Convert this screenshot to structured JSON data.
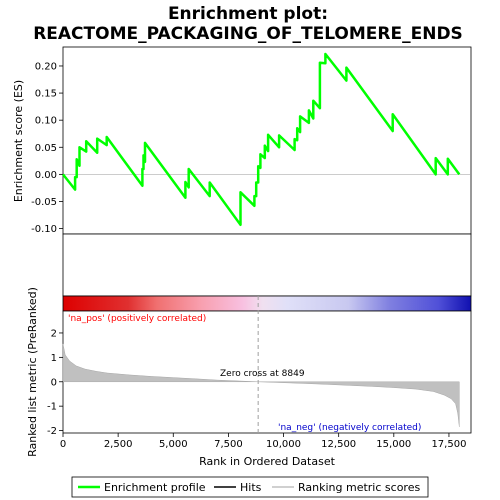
{
  "chart_data": {
    "type": "line",
    "title_line1": "Enrichment plot:",
    "title_line2": "REACTOME_PACKAGING_OF_TELOMERE_ENDS",
    "top_panel": {
      "ylabel": "Enrichment score (ES)",
      "ylim": [
        -0.11,
        0.235
      ],
      "yticks": [
        -0.1,
        -0.05,
        0.0,
        0.05,
        0.1,
        0.15,
        0.2
      ],
      "ytick_labels": [
        "-0.10",
        "-0.05",
        "0.00",
        "0.05",
        "0.10",
        "0.15",
        "0.20"
      ],
      "zero_line": true
    },
    "bottom_panel": {
      "ylabel": "Ranked list metric (PreRanked)",
      "ylim": [
        -2.1,
        2.9
      ],
      "yticks": [
        -2,
        -1,
        0,
        1,
        2
      ],
      "ytick_labels": [
        "-2",
        "-1",
        "0",
        "1",
        "2"
      ],
      "pos_label": "'na_pos' (positively correlated)",
      "neg_label": "'na_neg' (negatively correlated)",
      "zero_cross_label": "Zero cross at 8849",
      "zero_cross_rank": 8849
    },
    "x_axis": {
      "label": "Rank in Ordered Dataset",
      "xlim": [
        0,
        18500
      ],
      "ticks": [
        0,
        2500,
        5000,
        7500,
        10000,
        12500,
        15000,
        17500
      ],
      "tick_labels": [
        "0",
        "2,500",
        "5,000",
        "7,500",
        "10,000",
        "12,500",
        "15,000",
        "17,500"
      ],
      "n_genes": 17968
    },
    "hits": [
      550,
      620,
      750,
      1050,
      1550,
      1980,
      3600,
      3650,
      3720,
      5550,
      5700,
      6650,
      8050,
      8680,
      8760,
      8850,
      8950,
      9150,
      9300,
      9800,
      10500,
      10620,
      10750,
      11150,
      11350,
      11650,
      11900,
      12850,
      14950,
      16900,
      17450
    ],
    "es_peak_before": [
      -0.028,
      -0.005,
      0.016,
      0.042,
      0.04,
      0.054,
      -0.021,
      0.01,
      0.023,
      -0.043,
      -0.024,
      -0.04,
      -0.093,
      -0.058,
      -0.04,
      -0.015,
      0.012,
      0.03,
      0.043,
      0.05,
      0.045,
      0.063,
      0.078,
      0.095,
      0.103,
      0.122,
      0.205,
      0.173,
      0.08,
      0.0,
      0.0
    ],
    "es_peak_after": [
      -0.005,
      0.028,
      0.05,
      0.061,
      0.066,
      0.069,
      0.01,
      0.035,
      0.058,
      -0.014,
      0.01,
      -0.015,
      -0.033,
      -0.04,
      -0.015,
      0.015,
      0.037,
      0.053,
      0.073,
      0.072,
      0.065,
      0.085,
      0.107,
      0.118,
      0.136,
      0.206,
      0.222,
      0.197,
      0.111,
      0.03,
      0.029
    ],
    "es_end": 0.0,
    "metric_curve": {
      "ranks": [
        0,
        100,
        300,
        600,
        1000,
        1500,
        2000,
        3000,
        4000,
        5000,
        6000,
        7000,
        8000,
        8849,
        10000,
        11000,
        12000,
        13000,
        14000,
        15000,
        16000,
        16800,
        17300,
        17600,
        17800,
        17900,
        17968
      ],
      "values": [
        1.55,
        1.1,
        0.85,
        0.65,
        0.52,
        0.43,
        0.36,
        0.28,
        0.22,
        0.17,
        0.12,
        0.07,
        0.03,
        0.0,
        -0.04,
        -0.07,
        -0.11,
        -0.15,
        -0.19,
        -0.24,
        -0.3,
        -0.4,
        -0.55,
        -0.7,
        -0.9,
        -1.3,
        -1.85
      ]
    },
    "colors": {
      "es_line": "#00ff00",
      "hits": "#000000",
      "metric_fill": "#c0c0c0",
      "pos_label": "#ff0000",
      "neg_label": "#0000cc",
      "zero_cross_line": "#a0a0a0"
    },
    "legend": {
      "placement": "bottom",
      "entries": [
        {
          "label": "Enrichment profile",
          "style": "green-line"
        },
        {
          "label": "Hits",
          "style": "black-line"
        },
        {
          "label": "Ranking metric scores",
          "style": "gray-line"
        }
      ]
    }
  }
}
